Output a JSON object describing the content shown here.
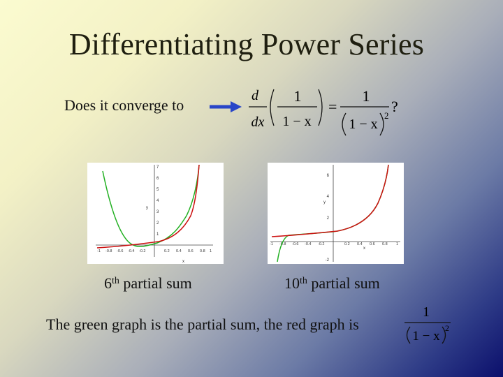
{
  "slide": {
    "title": "Differentiating Power Series",
    "question": "Does it converge to",
    "formula": {
      "d": "d",
      "dx": "dx",
      "one": "1",
      "one_minus_x": "1 − x",
      "equals": "=",
      "rhs_num": "1",
      "rhs_den": "1 − x",
      "exponent": "2",
      "qmark": "?"
    },
    "graphs": [
      {
        "caption_num": "6",
        "caption_sup": "th",
        "caption_text": " partial sum",
        "y_ticks": [
          "7",
          "6",
          "5",
          "4",
          "3",
          "2",
          "1"
        ],
        "x_ticks": [
          "-1",
          "-0.8",
          "-0.6",
          "-0.4",
          "-0.2",
          "0.2",
          "0.4",
          "0.6",
          "0.8",
          "1"
        ],
        "y_axis_label": "y",
        "x_axis_label": "x"
      },
      {
        "caption_num": "10",
        "caption_sup": "th",
        "caption_text": " partial sum",
        "y_ticks": [
          "6",
          "4",
          "2",
          "-2"
        ],
        "x_ticks": [
          "-1",
          "-0.8",
          "-0.6",
          "-0.4",
          "-0.2",
          "0.2",
          "0.4",
          "0.6",
          "0.8",
          "1"
        ],
        "y_axis_label": "y",
        "x_axis_label": "x"
      }
    ],
    "bottom_text": "The green graph is the partial sum, the red graph is",
    "bottom_formula": {
      "num": "1",
      "den": "1 − x",
      "exponent": "2"
    },
    "colors": {
      "partial_sum": "#22b022",
      "exact": "#cc1010",
      "arrow": "#2845c8"
    }
  }
}
